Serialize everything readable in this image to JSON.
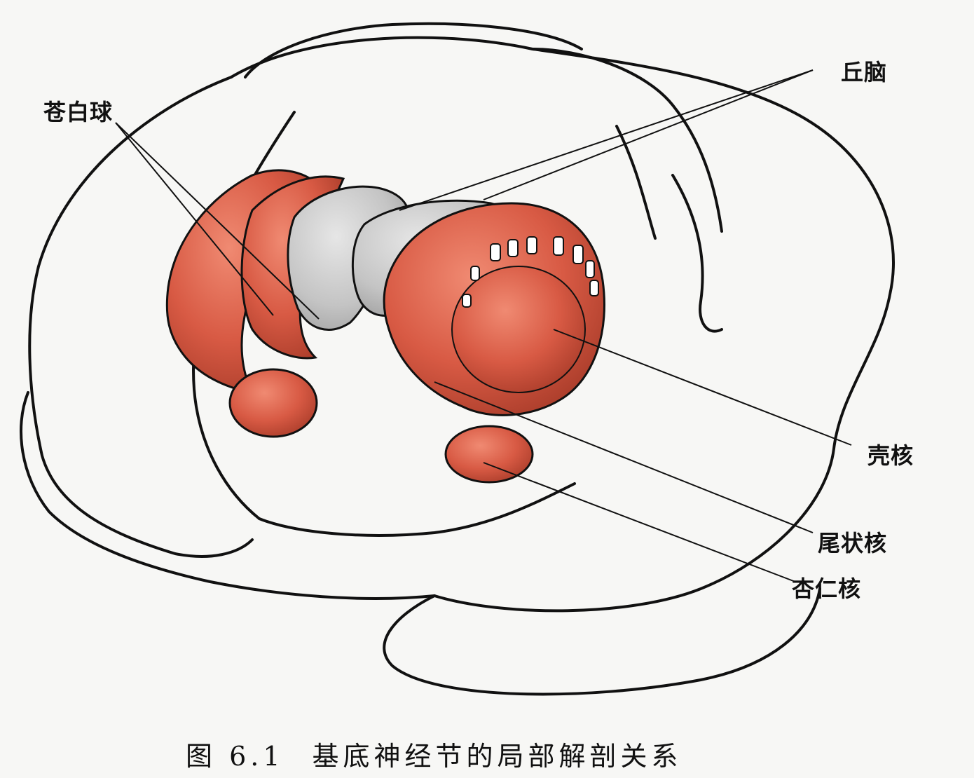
{
  "labels": {
    "thalamus": "丘脑",
    "globus_pallidus": "苍白球",
    "putamen": "壳核",
    "caudate": "尾状核",
    "amygdala": "杏仁核"
  },
  "caption": {
    "number": "图 6.1",
    "title": "基底神经节的局部解剖关系"
  },
  "colors": {
    "nucleus_red": "#d85a44",
    "nucleus_dark": "#b8402e",
    "thalamus_gray": "#c9c9c9",
    "outline": "#111111"
  }
}
